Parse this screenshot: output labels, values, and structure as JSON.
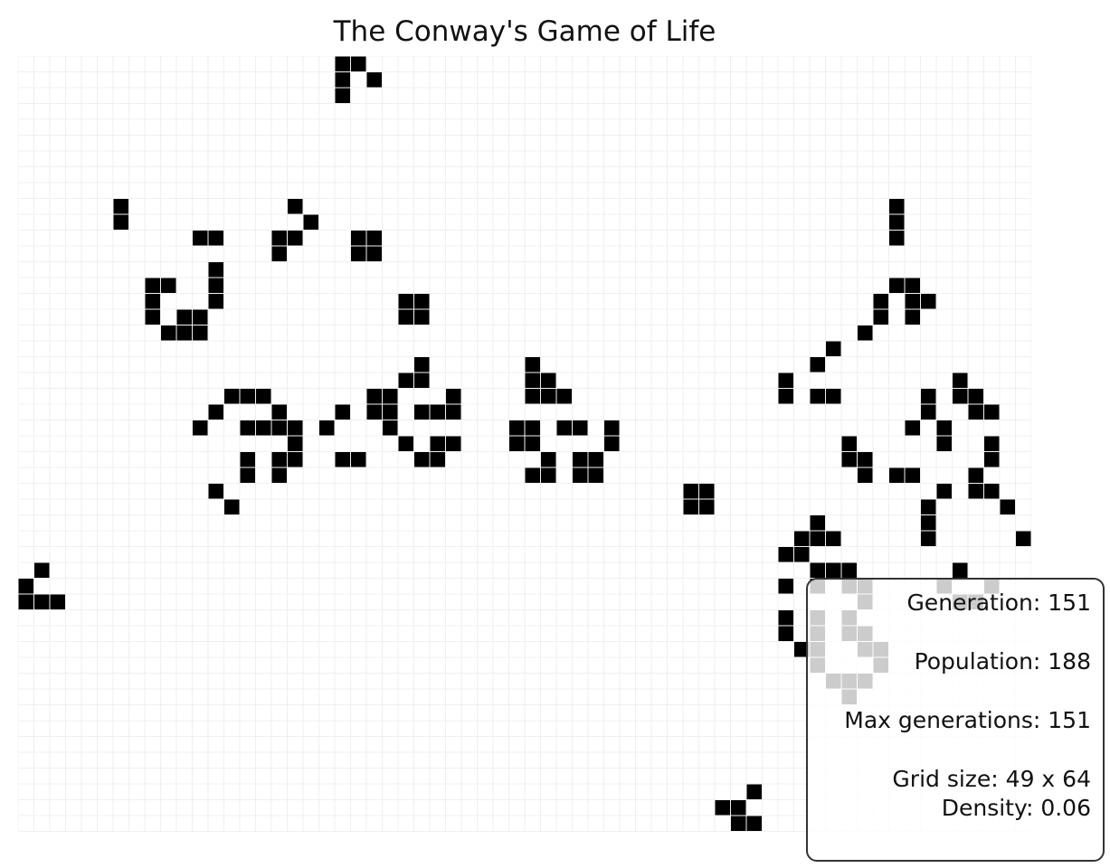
{
  "title": "The Conway's Game of Life",
  "colors": {
    "background": "#ffffff",
    "grid_line": "#ebebeb",
    "live_cell": "#000000",
    "panel_border": "#333333"
  },
  "grid": {
    "rows": 49,
    "cols": 64,
    "live_cells": [
      [
        0,
        20
      ],
      [
        0,
        21
      ],
      [
        1,
        20
      ],
      [
        1,
        22
      ],
      [
        2,
        20
      ],
      [
        9,
        6
      ],
      [
        9,
        17
      ],
      [
        9,
        55
      ],
      [
        10,
        6
      ],
      [
        10,
        18
      ],
      [
        10,
        55
      ],
      [
        11,
        11
      ],
      [
        11,
        12
      ],
      [
        11,
        16
      ],
      [
        11,
        17
      ],
      [
        11,
        21
      ],
      [
        11,
        22
      ],
      [
        11,
        55
      ],
      [
        12,
        16
      ],
      [
        12,
        21
      ],
      [
        12,
        22
      ],
      [
        13,
        12
      ],
      [
        14,
        8
      ],
      [
        14,
        9
      ],
      [
        14,
        12
      ],
      [
        14,
        55
      ],
      [
        14,
        56
      ],
      [
        15,
        8
      ],
      [
        15,
        12
      ],
      [
        15,
        24
      ],
      [
        15,
        25
      ],
      [
        15,
        54
      ],
      [
        15,
        56
      ],
      [
        15,
        57
      ],
      [
        16,
        8
      ],
      [
        16,
        10
      ],
      [
        16,
        11
      ],
      [
        16,
        24
      ],
      [
        16,
        25
      ],
      [
        16,
        54
      ],
      [
        16,
        56
      ],
      [
        17,
        9
      ],
      [
        17,
        10
      ],
      [
        17,
        11
      ],
      [
        17,
        53
      ],
      [
        18,
        51
      ],
      [
        19,
        25
      ],
      [
        19,
        32
      ],
      [
        19,
        50
      ],
      [
        20,
        24
      ],
      [
        20,
        25
      ],
      [
        20,
        32
      ],
      [
        20,
        33
      ],
      [
        20,
        48
      ],
      [
        20,
        59
      ],
      [
        21,
        13
      ],
      [
        21,
        14
      ],
      [
        21,
        15
      ],
      [
        21,
        22
      ],
      [
        21,
        23
      ],
      [
        21,
        27
      ],
      [
        21,
        32
      ],
      [
        21,
        33
      ],
      [
        21,
        34
      ],
      [
        21,
        48
      ],
      [
        21,
        50
      ],
      [
        21,
        51
      ],
      [
        21,
        57
      ],
      [
        21,
        59
      ],
      [
        21,
        60
      ],
      [
        22,
        12
      ],
      [
        22,
        16
      ],
      [
        22,
        20
      ],
      [
        22,
        22
      ],
      [
        22,
        23
      ],
      [
        22,
        25
      ],
      [
        22,
        26
      ],
      [
        22,
        27
      ],
      [
        22,
        57
      ],
      [
        22,
        60
      ],
      [
        22,
        61
      ],
      [
        23,
        11
      ],
      [
        23,
        14
      ],
      [
        23,
        15
      ],
      [
        23,
        16
      ],
      [
        23,
        17
      ],
      [
        23,
        19
      ],
      [
        23,
        23
      ],
      [
        23,
        31
      ],
      [
        23,
        32
      ],
      [
        23,
        34
      ],
      [
        23,
        35
      ],
      [
        23,
        37
      ],
      [
        23,
        56
      ],
      [
        23,
        58
      ],
      [
        24,
        17
      ],
      [
        24,
        24
      ],
      [
        24,
        26
      ],
      [
        24,
        27
      ],
      [
        24,
        31
      ],
      [
        24,
        32
      ],
      [
        24,
        37
      ],
      [
        24,
        52
      ],
      [
        24,
        58
      ],
      [
        24,
        61
      ],
      [
        25,
        14
      ],
      [
        25,
        16
      ],
      [
        25,
        17
      ],
      [
        25,
        20
      ],
      [
        25,
        21
      ],
      [
        25,
        25
      ],
      [
        25,
        26
      ],
      [
        25,
        33
      ],
      [
        25,
        35
      ],
      [
        25,
        36
      ],
      [
        25,
        52
      ],
      [
        25,
        53
      ],
      [
        25,
        61
      ],
      [
        26,
        14
      ],
      [
        26,
        16
      ],
      [
        26,
        32
      ],
      [
        26,
        33
      ],
      [
        26,
        35
      ],
      [
        26,
        36
      ],
      [
        26,
        53
      ],
      [
        26,
        55
      ],
      [
        26,
        56
      ],
      [
        26,
        60
      ],
      [
        27,
        12
      ],
      [
        27,
        42
      ],
      [
        27,
        43
      ],
      [
        27,
        58
      ],
      [
        27,
        60
      ],
      [
        27,
        61
      ],
      [
        28,
        13
      ],
      [
        28,
        42
      ],
      [
        28,
        43
      ],
      [
        28,
        57
      ],
      [
        28,
        62
      ],
      [
        29,
        50
      ],
      [
        29,
        57
      ],
      [
        30,
        49
      ],
      [
        30,
        50
      ],
      [
        30,
        51
      ],
      [
        30,
        57
      ],
      [
        30,
        63
      ],
      [
        31,
        48
      ],
      [
        31,
        49
      ],
      [
        32,
        1
      ],
      [
        32,
        50
      ],
      [
        32,
        51
      ],
      [
        32,
        52
      ],
      [
        32,
        59
      ],
      [
        33,
        0
      ],
      [
        33,
        48
      ],
      [
        33,
        50
      ],
      [
        33,
        52
      ],
      [
        33,
        53
      ],
      [
        33,
        58
      ],
      [
        33,
        61
      ],
      [
        34,
        0
      ],
      [
        34,
        1
      ],
      [
        34,
        2
      ],
      [
        34,
        53
      ],
      [
        34,
        59
      ],
      [
        34,
        60
      ],
      [
        35,
        48
      ],
      [
        35,
        50
      ],
      [
        35,
        52
      ],
      [
        36,
        48
      ],
      [
        36,
        50
      ],
      [
        36,
        52
      ],
      [
        36,
        53
      ],
      [
        37,
        49
      ],
      [
        37,
        50
      ],
      [
        37,
        53
      ],
      [
        37,
        54
      ],
      [
        38,
        50
      ],
      [
        38,
        54
      ],
      [
        39,
        51
      ],
      [
        39,
        52
      ],
      [
        39,
        53
      ],
      [
        40,
        52
      ],
      [
        46,
        46
      ],
      [
        47,
        44
      ],
      [
        47,
        45
      ],
      [
        48,
        45
      ],
      [
        48,
        46
      ]
    ]
  },
  "stats": {
    "generation_label": "Generation: 151",
    "population_label": "Population: 188",
    "max_generations_label": "Max generations: 151",
    "grid_size_label": "Grid size: 49 x 64",
    "density_label": "Density: 0.06"
  }
}
